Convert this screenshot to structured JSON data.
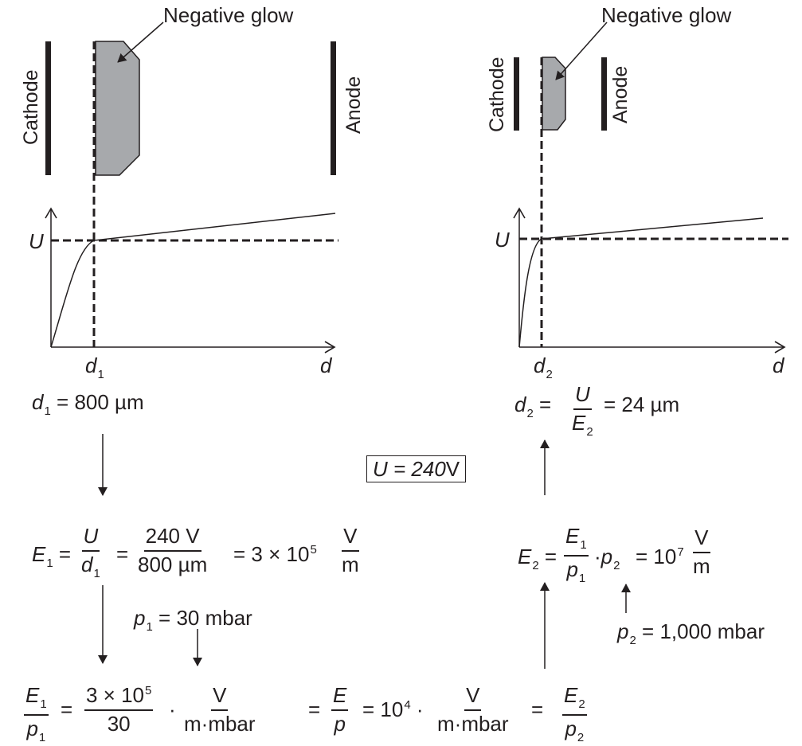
{
  "left_panel": {
    "label_negative_glow": "Negative glow",
    "label_cathode": "Cathode",
    "label_anode": "Anode",
    "axis_y": "U",
    "axis_x": "d",
    "tick_x": "d",
    "tick_x_sub": "1"
  },
  "right_panel": {
    "label_negative_glow": "Negative glow",
    "label_cathode": "Cathode",
    "label_anode": "Anode",
    "axis_y": "U",
    "axis_x": "d",
    "tick_x": "d",
    "tick_x_sub": "2"
  },
  "eq_d1": {
    "var": "d",
    "sub": "1",
    "rest": "= 800 µm"
  },
  "eq_d2": {
    "var": "d",
    "sub": "2",
    "eq": "=",
    "num": "U",
    "den_var": "E",
    "den_sub": "2",
    "rest": "= 24 µm"
  },
  "voltage_box": {
    "var": "U",
    "rest": " = 240",
    "unit": "V"
  },
  "eq_E1": {
    "lhs": "E",
    "lhs_sub": "1",
    "eq1": "=",
    "f1_num": "U",
    "f1_den": "d",
    "f1_den_sub": "1",
    "eq2": "=",
    "f2_num": "240 V",
    "f2_den": "800 µm",
    "eq3": "=",
    "value": "3 × 10",
    "value_exp": "5",
    "unit_num": "V",
    "unit_den": "m"
  },
  "eq_E2": {
    "lhs": "E",
    "lhs_sub": "2",
    "eq1": "=",
    "f_num": "E",
    "f_num_sub": "1",
    "f_den": "p",
    "f_den_sub": "1",
    "dot": "·",
    "p2": "p",
    "p2_sub": "2",
    "eq2": "=",
    "value": "10",
    "value_exp": "7",
    "unit_num": "V",
    "unit_den": "m"
  },
  "p1_label": {
    "var": "p",
    "sub": "1",
    "rest": "= 30 mbar"
  },
  "p2_label": {
    "var": "p",
    "sub": "2",
    "rest": "= 1,000 mbar"
  },
  "bottom_eq": {
    "f1_num": "E",
    "f1_num_sub": "1",
    "f1_den": "p",
    "f1_den_sub": "1",
    "eq1": "=",
    "f2_num": "3 × 10",
    "f2_num_exp": "5",
    "f2_den": "30",
    "dot1": "·",
    "f3_num": "V",
    "f3_den": "m·mbar",
    "eq2": "=",
    "f4_num": "E",
    "f4_den": "p",
    "eq3": "= 10",
    "exp": "4",
    "dot2": "·",
    "f5_num": "V",
    "f5_den": "m·mbar",
    "eq4": "=",
    "f6_num": "E",
    "f6_num_sub": "2",
    "f6_den": "p",
    "f6_den_sub": "2"
  },
  "colors": {
    "ink": "#231f20",
    "glow_fill": "#a7a9ac"
  }
}
